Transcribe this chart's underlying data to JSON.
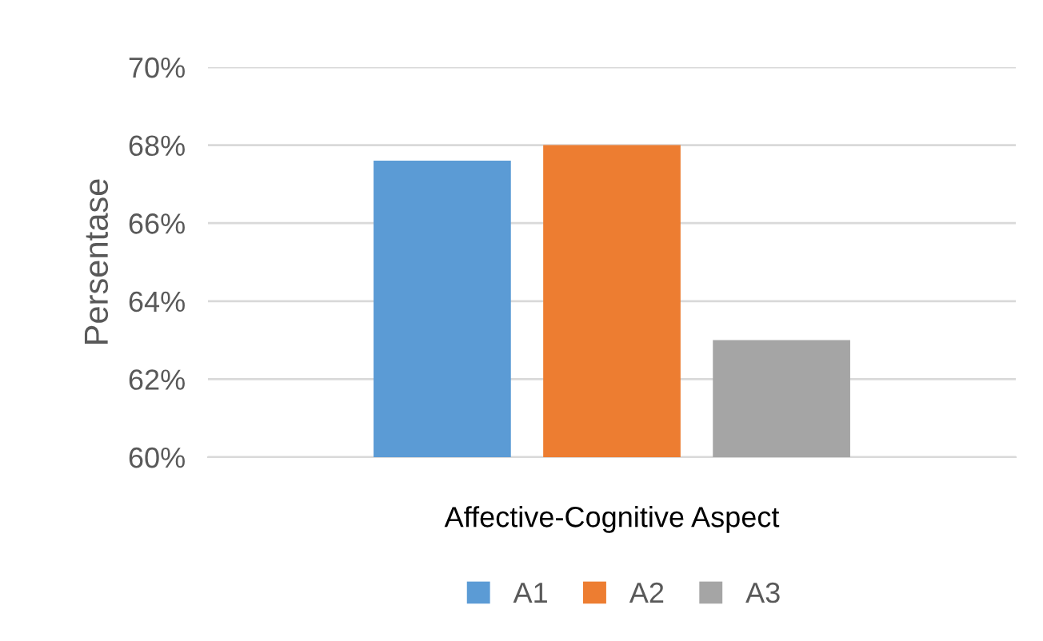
{
  "chart_data": {
    "type": "bar",
    "ylabel": "Persentase",
    "categories": [
      "Affective-Cognitive Aspect"
    ],
    "series": [
      {
        "name": "A1",
        "color": "#5b9bd5",
        "values": [
          67.6
        ]
      },
      {
        "name": "A2",
        "color": "#ed7d31",
        "values": [
          68.0
        ]
      },
      {
        "name": "A3",
        "color": "#a5a5a5",
        "values": [
          63.0
        ]
      }
    ],
    "ylim": [
      60,
      70
    ],
    "yticks": [
      {
        "value": 60,
        "label": "60%"
      },
      {
        "value": 62,
        "label": "62%"
      },
      {
        "value": 64,
        "label": "64%"
      },
      {
        "value": 66,
        "label": "66%"
      },
      {
        "value": 68,
        "label": "68%"
      },
      {
        "value": 70,
        "label": "70%"
      }
    ],
    "grid": "y",
    "legend": "bottom"
  }
}
